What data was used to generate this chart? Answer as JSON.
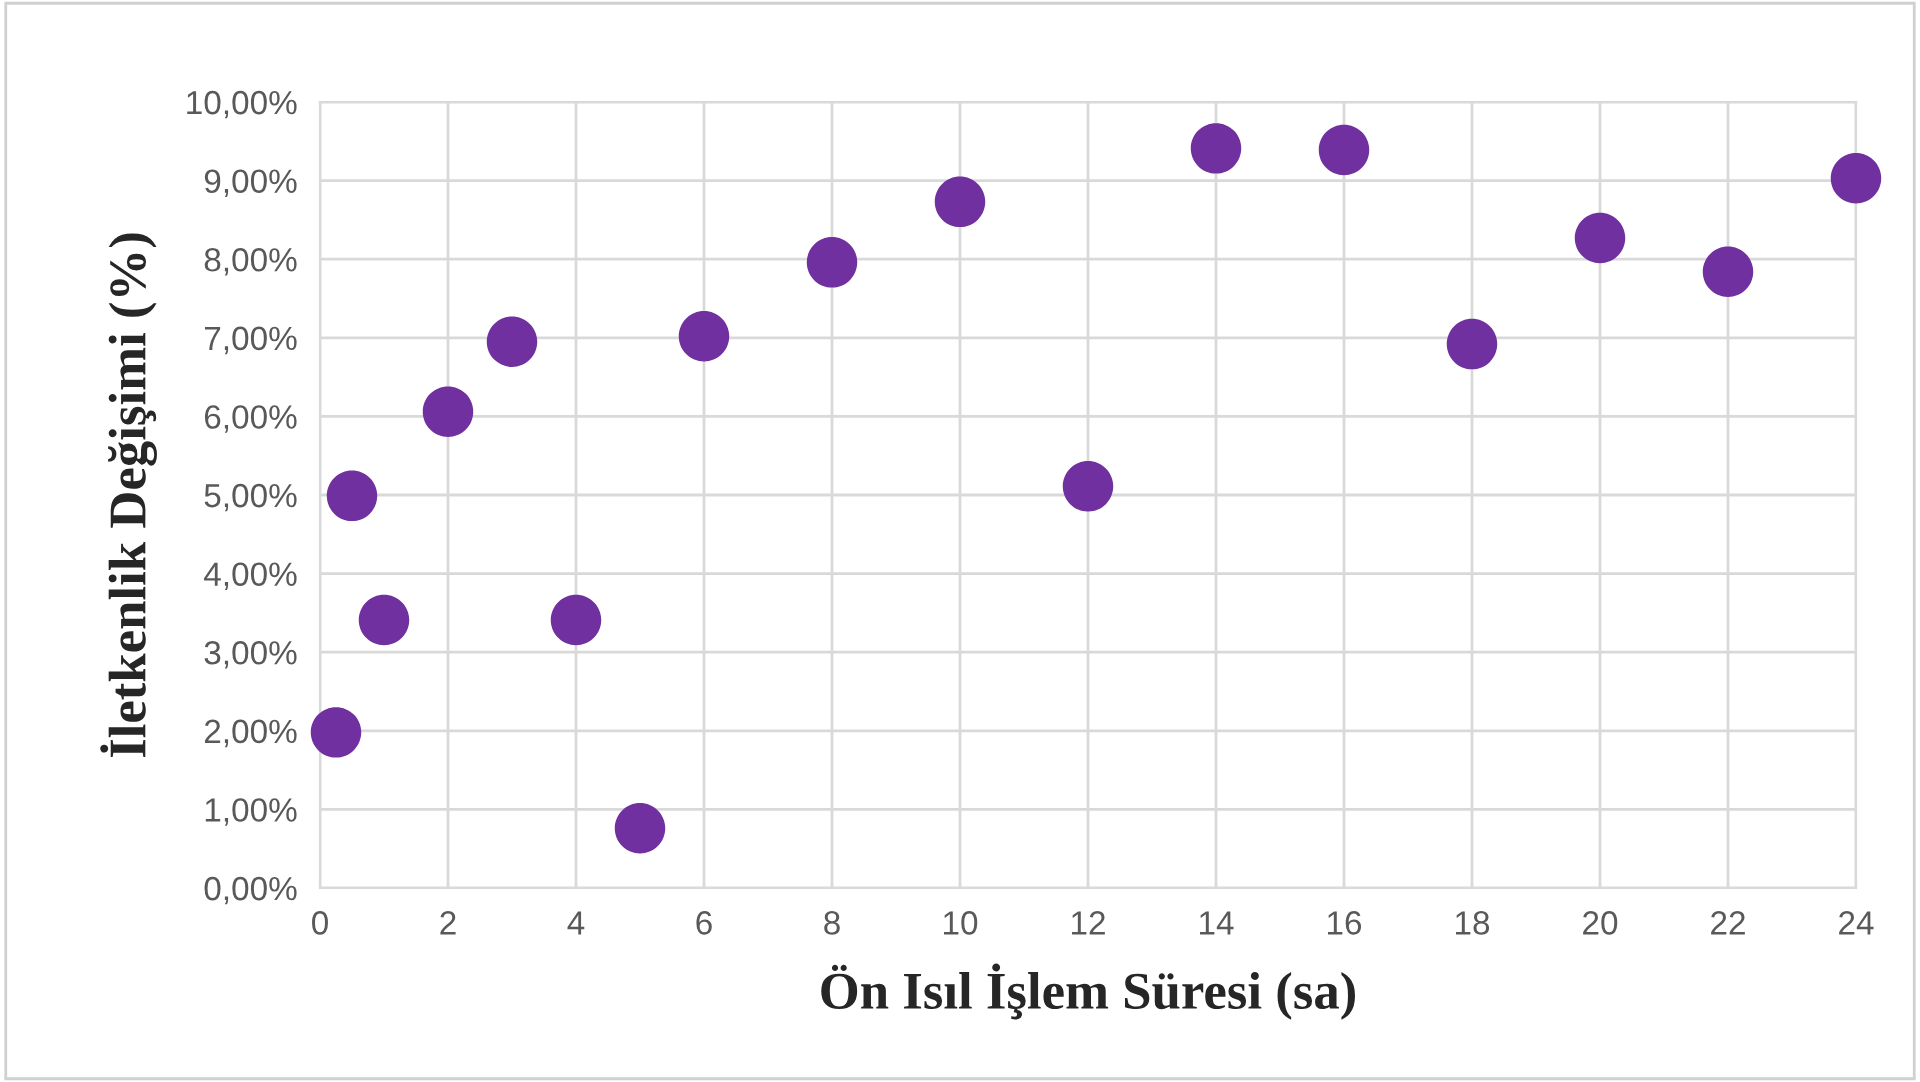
{
  "chart_data": {
    "type": "scatter",
    "xlabel": "Ön Isıl İşlem Süresi (sa)",
    "ylabel": "İletkenlik Değişimi (%)",
    "x": [
      0.25,
      0.5,
      1,
      2,
      3,
      4,
      5,
      6,
      8,
      10,
      12,
      14,
      16,
      18,
      20,
      22,
      24
    ],
    "series": [
      {
        "color": "#7030a0",
        "values": [
          1.98,
          4.99,
          3.41,
          6.06,
          6.95,
          3.41,
          0.76,
          7.02,
          7.96,
          8.73,
          5.11,
          9.41,
          9.39,
          6.92,
          8.27,
          7.84,
          9.03
        ]
      }
    ],
    "xlim": [
      0,
      24
    ],
    "xticks": [
      0,
      2,
      4,
      6,
      8,
      10,
      12,
      14,
      16,
      18,
      20,
      22,
      24
    ],
    "ylim": [
      0,
      10
    ],
    "yticks": [
      {
        "value": 0,
        "label": "0,00%"
      },
      {
        "value": 1,
        "label": "1,00%"
      },
      {
        "value": 2,
        "label": "2,00%"
      },
      {
        "value": 3,
        "label": "3,00%"
      },
      {
        "value": 4,
        "label": "4,00%"
      },
      {
        "value": 5,
        "label": "5,00%"
      },
      {
        "value": 6,
        "label": "6,00%"
      },
      {
        "value": 7,
        "label": "7,00%"
      },
      {
        "value": 8,
        "label": "8,00%"
      },
      {
        "value": 9,
        "label": "9,00%"
      },
      {
        "value": 10,
        "label": "10,00%"
      }
    ],
    "grid": true,
    "marker": "circle",
    "legend": false
  }
}
